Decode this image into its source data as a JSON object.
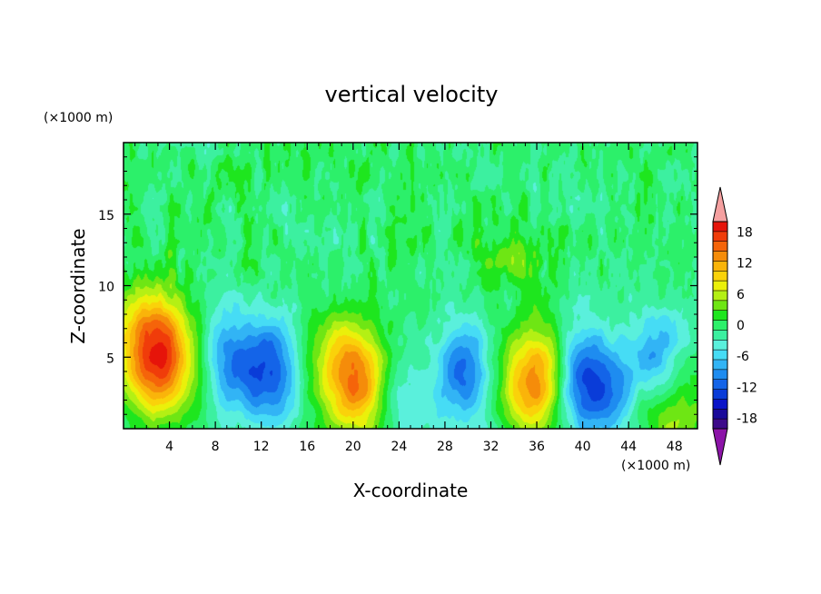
{
  "chart_data": {
    "type": "heatmap",
    "title": "vertical velocity",
    "xlabel": "X-coordinate",
    "ylabel": "Z-coordinate",
    "x_unit": "(×1000 m)",
    "y_unit": "(×1000 m)",
    "xlim": [
      0,
      50
    ],
    "ylim": [
      0,
      20
    ],
    "x_ticks": [
      4,
      8,
      12,
      16,
      20,
      24,
      28,
      32,
      36,
      40,
      44,
      48
    ],
    "y_ticks": [
      5,
      10,
      15
    ],
    "colorbar": {
      "levels": [
        -20,
        -18,
        -16,
        -14,
        -12,
        -10,
        -8,
        -6,
        -4,
        -2,
        0,
        2,
        4,
        6,
        8,
        10,
        12,
        14,
        16,
        18,
        20
      ],
      "tick_labels": [
        "18",
        "12",
        "6",
        "0",
        "-6",
        "-12",
        "-18"
      ],
      "tick_values": [
        18,
        12,
        6,
        0,
        -6,
        -12,
        -18
      ],
      "colors": [
        "#3d0a8a",
        "#1a0a9a",
        "#0a14c8",
        "#0a3cd8",
        "#1464e8",
        "#1e8cf0",
        "#32b4f5",
        "#46dcf5",
        "#5af0dc",
        "#3cf0a0",
        "#2cf06a",
        "#1ee61e",
        "#6ee614",
        "#b4f014",
        "#ebf00a",
        "#fad20a",
        "#fab40a",
        "#f58c0a",
        "#f5640a",
        "#f03c0a",
        "#e6140a"
      ],
      "under_color": "#8c14a8",
      "over_color": "#f5a0a0"
    },
    "features": [
      {
        "x": 3.2,
        "z": 4.5,
        "value": 17
      },
      {
        "x": 2.0,
        "z": 7.5,
        "value": 8
      },
      {
        "x": 12.8,
        "z": 4.1,
        "value": -12
      },
      {
        "x": 9.4,
        "z": 4.7,
        "value": -9
      },
      {
        "x": 19.3,
        "z": 4.4,
        "value": 11
      },
      {
        "x": 21.0,
        "z": 2.5,
        "value": 9
      },
      {
        "x": 29.6,
        "z": 3.8,
        "value": -11
      },
      {
        "x": 36.0,
        "z": 3.4,
        "value": 16
      },
      {
        "x": 39.6,
        "z": 3.4,
        "value": -13
      },
      {
        "x": 47.5,
        "z": 1.0,
        "value": 8
      },
      {
        "x": 24.0,
        "z": 2.0,
        "value": -6
      },
      {
        "x": 42.5,
        "z": 2.5,
        "value": -8
      },
      {
        "x": 46.5,
        "z": 4.8,
        "value": -9
      },
      {
        "x": 33.5,
        "z": 12.0,
        "value": 4
      }
    ]
  }
}
